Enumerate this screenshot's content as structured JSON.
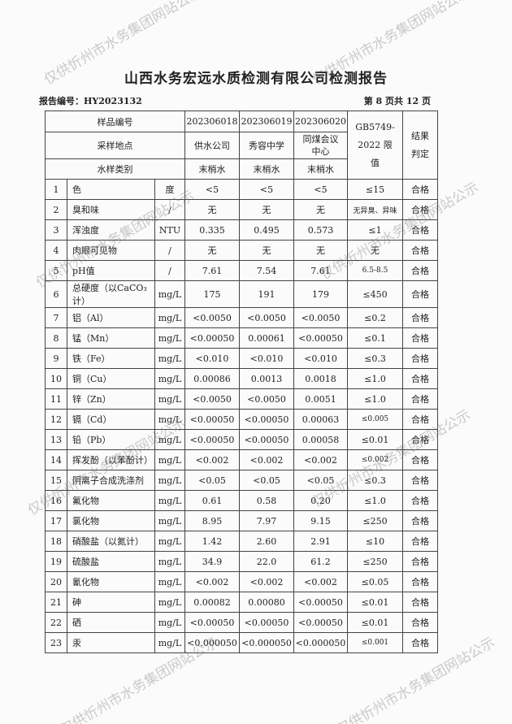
{
  "title": "山西水务宏远水质检测有限公司检测报告",
  "report_no": "报告编号：HY2023132",
  "page_info": "第 8 页共 12 页",
  "watermark": "仅供忻州市水务集团网站公示",
  "header": {
    "sample_no_label": "样品编号",
    "location_label": "采样地点",
    "type_label": "水样类别",
    "samples": [
      {
        "no": "202306018",
        "location": "供水公司",
        "type": "末梢水"
      },
      {
        "no": "202306019",
        "location": "秀容中学",
        "type": "末梢水"
      },
      {
        "no": "202306020",
        "location": "同煤会议中心",
        "type": "末梢水"
      }
    ],
    "limit_label": "GB5749-2022 限值",
    "result_label": "结果判定"
  },
  "rows": [
    {
      "n": "1",
      "item": "色",
      "unit": "度",
      "v": [
        "<5",
        "<5",
        "<5"
      ],
      "limit": "≤15",
      "result": "合格"
    },
    {
      "n": "2",
      "item": "臭和味",
      "unit": "/",
      "v": [
        "无",
        "无",
        "无"
      ],
      "limit": "无异臭、异味",
      "result": "合格"
    },
    {
      "n": "3",
      "item": "浑浊度",
      "unit": "NTU",
      "v": [
        "0.335",
        "0.495",
        "0.573"
      ],
      "limit": "≤1",
      "result": "合格"
    },
    {
      "n": "4",
      "item": "肉眼可见物",
      "unit": "/",
      "v": [
        "无",
        "无",
        "无"
      ],
      "limit": "无",
      "result": "合格"
    },
    {
      "n": "5",
      "item": "pH值",
      "unit": "/",
      "v": [
        "7.61",
        "7.54",
        "7.61"
      ],
      "limit": "6.5-8.5",
      "result": "合格"
    },
    {
      "n": "6",
      "item": "总硬度（以CaCO₃计）",
      "unit": "mg/L",
      "v": [
        "175",
        "191",
        "179"
      ],
      "limit": "≤450",
      "result": "合格"
    },
    {
      "n": "7",
      "item": "铝（Al）",
      "unit": "mg/L",
      "v": [
        "<0.0050",
        "<0.0050",
        "<0.0050"
      ],
      "limit": "≤0.2",
      "result": "合格"
    },
    {
      "n": "8",
      "item": "锰（Mn）",
      "unit": "mg/L",
      "v": [
        "<0.00050",
        "0.00061",
        "<0.00050"
      ],
      "limit": "≤0.1",
      "result": "合格"
    },
    {
      "n": "9",
      "item": "铁（Fe）",
      "unit": "mg/L",
      "v": [
        "<0.010",
        "<0.010",
        "<0.010"
      ],
      "limit": "≤0.3",
      "result": "合格"
    },
    {
      "n": "10",
      "item": "铜（Cu）",
      "unit": "mg/L",
      "v": [
        "0.00086",
        "0.0013",
        "0.0018"
      ],
      "limit": "≤1.0",
      "result": "合格"
    },
    {
      "n": "11",
      "item": "锌（Zn）",
      "unit": "mg/L",
      "v": [
        "<0.0050",
        "<0.0050",
        "0.0051"
      ],
      "limit": "≤1.0",
      "result": "合格"
    },
    {
      "n": "12",
      "item": "镉（Cd）",
      "unit": "mg/L",
      "v": [
        "<0.00050",
        "<0.00050",
        "0.00063"
      ],
      "limit": "≤0.005",
      "result": "合格"
    },
    {
      "n": "13",
      "item": "铅（Pb）",
      "unit": "mg/L",
      "v": [
        "<0.00050",
        "<0.00050",
        "0.00058"
      ],
      "limit": "≤0.01",
      "result": "合格"
    },
    {
      "n": "14",
      "item": "挥发酚（以苯酚计）",
      "unit": "mg/L",
      "v": [
        "<0.002",
        "<0.002",
        "<0.002"
      ],
      "limit": "≤0.002",
      "result": "合格"
    },
    {
      "n": "15",
      "item": "阴离子合成洗涤剂",
      "unit": "mg/L",
      "v": [
        "<0.05",
        "<0.05",
        "<0.05"
      ],
      "limit": "≤0.3",
      "result": "合格"
    },
    {
      "n": "16",
      "item": "氟化物",
      "unit": "mg/L",
      "v": [
        "0.61",
        "0.58",
        "0.20"
      ],
      "limit": "≤1.0",
      "result": "合格"
    },
    {
      "n": "17",
      "item": "氯化物",
      "unit": "mg/L",
      "v": [
        "8.95",
        "7.97",
        "9.15"
      ],
      "limit": "≤250",
      "result": "合格"
    },
    {
      "n": "18",
      "item": "硝酸盐（以氮计）",
      "unit": "mg/L",
      "v": [
        "1.42",
        "2.60",
        "2.91"
      ],
      "limit": "≤10",
      "result": "合格"
    },
    {
      "n": "19",
      "item": "硫酸盐",
      "unit": "mg/L",
      "v": [
        "34.9",
        "22.0",
        "61.2"
      ],
      "limit": "≤250",
      "result": "合格"
    },
    {
      "n": "20",
      "item": "氰化物",
      "unit": "mg/L",
      "v": [
        "<0.002",
        "<0.002",
        "<0.002"
      ],
      "limit": "≤0.05",
      "result": "合格"
    },
    {
      "n": "21",
      "item": "砷",
      "unit": "mg/L",
      "v": [
        "0.00082",
        "0.00080",
        "<0.00050"
      ],
      "limit": "≤0.01",
      "result": "合格"
    },
    {
      "n": "22",
      "item": "硒",
      "unit": "mg/L",
      "v": [
        "<0.00050",
        "<0.00050",
        "<0.00050"
      ],
      "limit": "≤0.01",
      "result": "合格"
    },
    {
      "n": "23",
      "item": "汞",
      "unit": "mg/L",
      "v": [
        "<0.000050",
        "<0.000050",
        "<0.000050"
      ],
      "limit": "≤0.001",
      "result": "合格"
    }
  ]
}
